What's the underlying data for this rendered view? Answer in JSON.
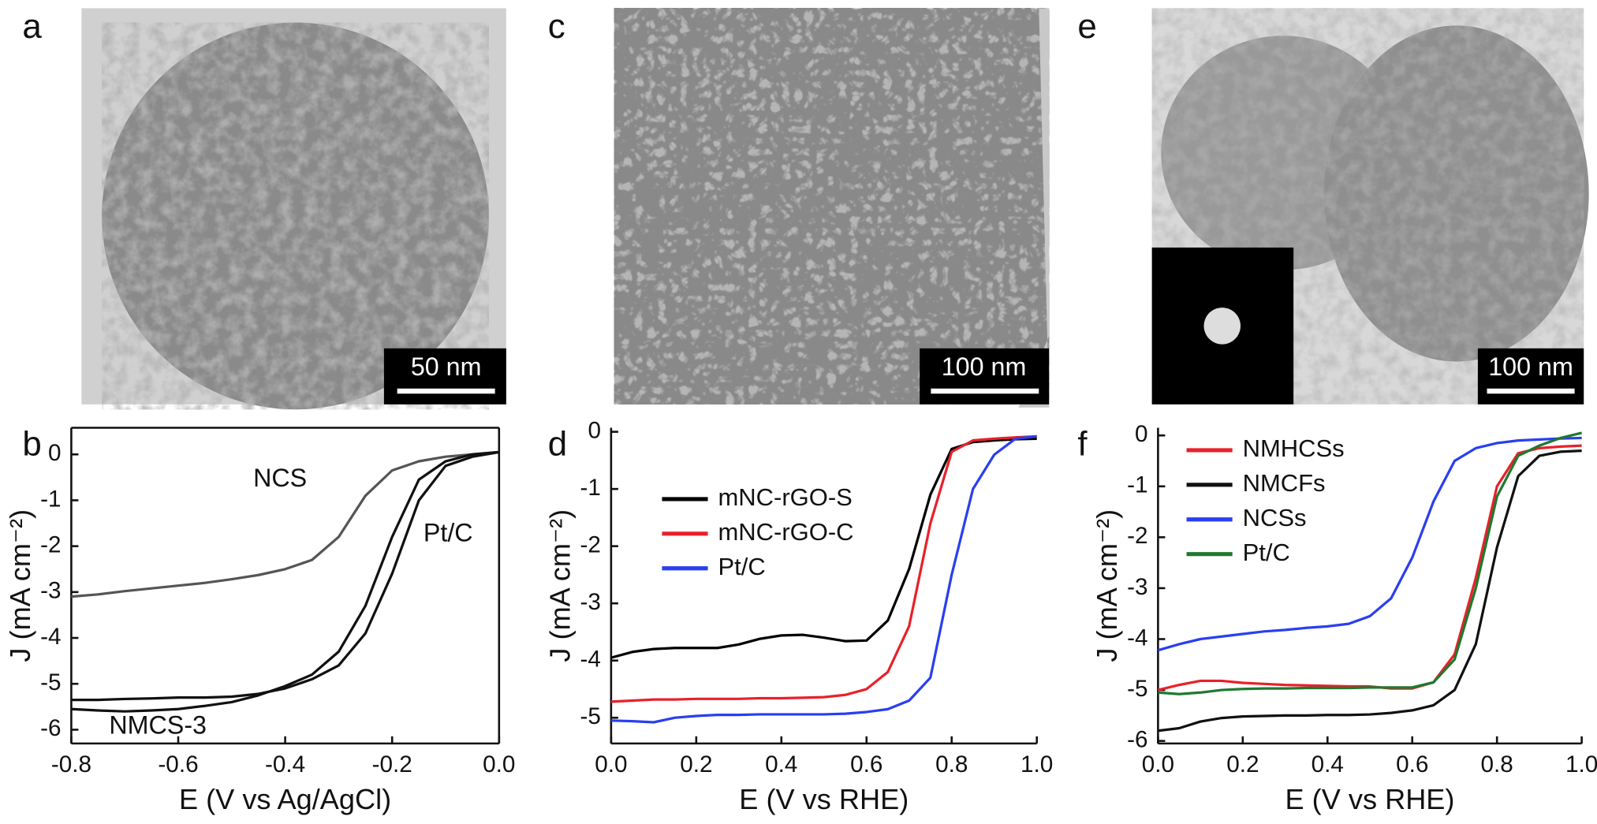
{
  "images": [
    {
      "label": "a",
      "scale_bar": "50 nm"
    },
    {
      "label": "c",
      "scale_bar": "100 nm"
    },
    {
      "label": "e",
      "scale_bar": "100 nm"
    }
  ],
  "chart_data": [
    {
      "type": "line",
      "panel_label": "b",
      "x_label": "E (V vs Ag/AgCl)",
      "y_label": "J (mA cm⁻²)",
      "x": [
        -0.8,
        -0.75,
        -0.7,
        -0.65,
        -0.6,
        -0.55,
        -0.5,
        -0.45,
        -0.4,
        -0.35,
        -0.3,
        -0.25,
        -0.2,
        -0.15,
        -0.1,
        -0.05,
        0
      ],
      "series": [
        {
          "name": "NCS",
          "color": "#555555",
          "values": [
            -3.1,
            -3.05,
            -2.98,
            -2.92,
            -2.86,
            -2.8,
            -2.72,
            -2.63,
            -2.5,
            -2.3,
            -1.8,
            -0.9,
            -0.35,
            -0.15,
            -0.05,
            0,
            0.05
          ]
        },
        {
          "name": "Pt/C",
          "color": "#111111",
          "values": [
            -5.35,
            -5.35,
            -5.33,
            -5.32,
            -5.3,
            -5.3,
            -5.28,
            -5.22,
            -5.1,
            -4.9,
            -4.6,
            -3.9,
            -2.6,
            -1.0,
            -0.25,
            -0.05,
            0.05
          ]
        },
        {
          "name": "NMCS-3",
          "color": "#111111",
          "values": [
            -5.55,
            -5.58,
            -5.6,
            -5.58,
            -5.55,
            -5.48,
            -5.4,
            -5.25,
            -5.05,
            -4.8,
            -4.3,
            -3.3,
            -1.8,
            -0.55,
            -0.15,
            0,
            0.05
          ]
        }
      ],
      "xlim": [
        -0.8,
        0
      ],
      "xticks": [
        -0.8,
        -0.6,
        -0.4,
        -0.2,
        {
          "value": 0,
          "label": "0.0"
        }
      ],
      "ylim": [
        -6.3,
        0.58
      ],
      "yticks": [
        0,
        -1,
        -2,
        -3,
        -4,
        -5,
        -6
      ]
    },
    {
      "type": "line",
      "panel_label": "d",
      "x_label": "E (V vs RHE)",
      "y_label": "J (mA cm⁻²)",
      "x": [
        0,
        0.05,
        0.1,
        0.15,
        0.2,
        0.25,
        0.3,
        0.35,
        0.4,
        0.45,
        0.5,
        0.55,
        0.6,
        0.65,
        0.7,
        0.75,
        0.8,
        0.85,
        0.9,
        0.95,
        1
      ],
      "series": [
        {
          "name": "mNC-rGO-S",
          "color": "#000000",
          "values": [
            -3.95,
            -3.85,
            -3.8,
            -3.78,
            -3.78,
            -3.78,
            -3.72,
            -3.62,
            -3.56,
            -3.55,
            -3.6,
            -3.66,
            -3.65,
            -3.3,
            -2.4,
            -1.1,
            -0.3,
            -0.18,
            -0.15,
            -0.13,
            -0.12
          ]
        },
        {
          "name": "mNC-rGO-C",
          "color": "#e8212a",
          "values": [
            -4.72,
            -4.7,
            -4.68,
            -4.68,
            -4.67,
            -4.67,
            -4.67,
            -4.66,
            -4.66,
            -4.65,
            -4.64,
            -4.6,
            -4.5,
            -4.2,
            -3.4,
            -1.6,
            -0.35,
            -0.15,
            -0.12,
            -0.1,
            -0.08
          ]
        },
        {
          "name": "Pt/C",
          "color": "#2a3ff0",
          "values": [
            -5.05,
            -5.06,
            -5.08,
            -5.0,
            -4.97,
            -4.95,
            -4.95,
            -4.94,
            -4.94,
            -4.94,
            -4.94,
            -4.93,
            -4.9,
            -4.85,
            -4.7,
            -4.3,
            -2.5,
            -1.0,
            -0.4,
            -0.12,
            -0.08
          ]
        }
      ],
      "xlim": [
        0,
        1
      ],
      "xticks": [
        {
          "value": 0,
          "label": "0.0"
        },
        0.2,
        0.4,
        0.6,
        0.8,
        {
          "value": 1,
          "label": "1.0"
        }
      ],
      "ylim": [
        -5.45,
        0.07
      ],
      "yticks": [
        0,
        -1,
        -2,
        -3,
        -4,
        -5
      ]
    },
    {
      "type": "line",
      "panel_label": "f",
      "x_label": "E (V vs RHE)",
      "y_label": "J (mA cm⁻²)",
      "x": [
        0,
        0.05,
        0.1,
        0.15,
        0.2,
        0.25,
        0.3,
        0.35,
        0.4,
        0.45,
        0.5,
        0.55,
        0.6,
        0.65,
        0.7,
        0.75,
        0.8,
        0.85,
        0.9,
        0.95,
        1
      ],
      "series": [
        {
          "name": "NMHCSs",
          "color": "#e8212a",
          "values": [
            -5.0,
            -4.9,
            -4.82,
            -4.82,
            -4.86,
            -4.88,
            -4.9,
            -4.91,
            -4.92,
            -4.93,
            -4.93,
            -4.97,
            -4.97,
            -4.85,
            -4.3,
            -2.8,
            -1.0,
            -0.35,
            -0.25,
            -0.22,
            -0.2
          ]
        },
        {
          "name": "NMCFs",
          "color": "#111111",
          "values": [
            -5.8,
            -5.75,
            -5.62,
            -5.55,
            -5.52,
            -5.51,
            -5.5,
            -5.5,
            -5.49,
            -5.49,
            -5.48,
            -5.45,
            -5.4,
            -5.3,
            -5.0,
            -4.1,
            -2.2,
            -0.8,
            -0.4,
            -0.32,
            -0.3
          ]
        },
        {
          "name": "NCSs",
          "color": "#2a3ff0",
          "values": [
            -4.22,
            -4.1,
            -4.0,
            -3.95,
            -3.9,
            -3.85,
            -3.82,
            -3.78,
            -3.75,
            -3.7,
            -3.55,
            -3.2,
            -2.4,
            -1.3,
            -0.5,
            -0.25,
            -0.15,
            -0.1,
            -0.08,
            -0.06,
            -0.05
          ]
        },
        {
          "name": "Pt/C",
          "color": "#1e7a2e",
          "values": [
            -5.05,
            -5.08,
            -5.05,
            -5.0,
            -4.98,
            -4.97,
            -4.97,
            -4.96,
            -4.96,
            -4.96,
            -4.95,
            -4.95,
            -4.95,
            -4.85,
            -4.4,
            -3.0,
            -1.2,
            -0.4,
            -0.2,
            -0.05,
            0.05
          ]
        }
      ],
      "xlim": [
        0,
        1
      ],
      "xticks": [
        {
          "value": 0,
          "label": "0.0"
        },
        0.2,
        0.4,
        0.6,
        0.8,
        {
          "value": 1,
          "label": "1.0"
        }
      ],
      "ylim": [
        -6.05,
        0.15
      ],
      "yticks": [
        0,
        -1,
        -2,
        -3,
        -4,
        -5,
        -6
      ]
    }
  ]
}
